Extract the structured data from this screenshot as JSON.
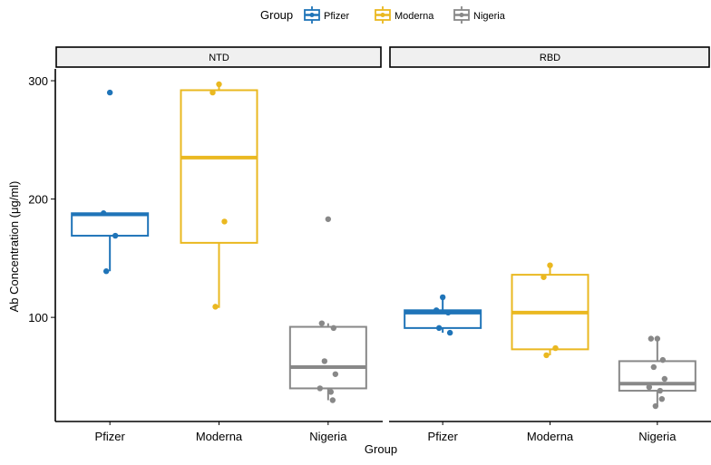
{
  "chart_data": {
    "type": "box",
    "legend": {
      "title": "Group",
      "position": "top",
      "entries": [
        "Pfizer",
        "Moderna",
        "Nigeria"
      ]
    },
    "colors": {
      "Pfizer": "#1f74b8",
      "Moderna": "#eab820",
      "Nigeria": "#888888"
    },
    "xlabel": "Group",
    "ylabel": "Ab Concentration (μg/ml)",
    "ylim": [
      12,
      310
    ],
    "yticks": [
      100,
      200,
      300
    ],
    "grid": false,
    "panels": [
      {
        "title": "NTD",
        "groups": [
          {
            "name": "Pfizer",
            "box": {
              "min": 139,
              "q1": 169,
              "median": 187,
              "q3": 188,
              "max": 188
            },
            "outliers": [
              290,
              139
            ],
            "points": [
              290,
              188,
              169,
              139
            ]
          },
          {
            "name": "Moderna",
            "box": {
              "min": 108,
              "q1": 163,
              "median": 235,
              "q3": 292,
              "max": 297
            },
            "outliers": [],
            "points": [
              297,
              290,
              181,
              109
            ]
          },
          {
            "name": "Nigeria",
            "box": {
              "min": 30,
              "q1": 40,
              "median": 58,
              "q3": 92,
              "max": 95
            },
            "outliers": [
              183
            ],
            "points": [
              183,
              95,
              91,
              63,
              52,
              40,
              37,
              30
            ]
          }
        ]
      },
      {
        "title": "RBD",
        "groups": [
          {
            "name": "Pfizer",
            "box": {
              "min": 87,
              "q1": 91,
              "median": 104,
              "q3": 106,
              "max": 117
            },
            "outliers": [],
            "points": [
              117,
              106,
              104,
              91,
              87
            ]
          },
          {
            "name": "Moderna",
            "box": {
              "min": 68,
              "q1": 73,
              "median": 104,
              "q3": 136,
              "max": 143
            },
            "outliers": [],
            "points": [
              144,
              134,
              74,
              68
            ]
          },
          {
            "name": "Nigeria",
            "box": {
              "min": 25,
              "q1": 38,
              "median": 44,
              "q3": 63,
              "max": 81
            },
            "outliers": [],
            "points": [
              82,
              82,
              64,
              58,
              48,
              41,
              38,
              31,
              25
            ]
          }
        ]
      }
    ]
  }
}
